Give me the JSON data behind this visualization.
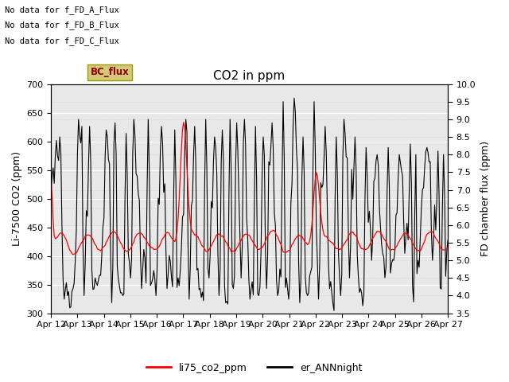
{
  "title": "CO2 in ppm",
  "ylabel_left": "Li-7500 CO2 (ppm)",
  "ylabel_right": "FD chamber flux (ppm)",
  "ylim_left": [
    300,
    700
  ],
  "ylim_right": [
    3.5,
    10.0
  ],
  "xlim": [
    0,
    360
  ],
  "xtick_labels": [
    "Apr 12",
    "Apr 13",
    "Apr 14",
    "Apr 15",
    "Apr 16",
    "Apr 17",
    "Apr 18",
    "Apr 19",
    "Apr 20",
    "Apr 21",
    "Apr 22",
    "Apr 23",
    "Apr 24",
    "Apr 25",
    "Apr 26",
    "Apr 27"
  ],
  "xtick_positions": [
    0,
    24,
    48,
    72,
    96,
    120,
    144,
    168,
    192,
    216,
    240,
    264,
    288,
    312,
    336,
    360
  ],
  "legend_labels": [
    "li75_co2_ppm",
    "er_ANNnight"
  ],
  "legend_colors": [
    "#ff0000",
    "#000000"
  ],
  "no_data_texts": [
    "No data for f_FD_A_Flux",
    "No data for f_FD_B_Flux",
    "No data for f_FD_C_Flux"
  ],
  "bc_flux_label": "BC_flux",
  "plot_bg_color": "#e8e8e8",
  "line_red_color": "#ff0000",
  "line_black_color": "#000000",
  "title_fontsize": 11,
  "axis_label_fontsize": 9,
  "tick_fontsize": 8,
  "yticks_left": [
    300,
    350,
    400,
    450,
    500,
    550,
    600,
    650,
    700
  ],
  "yticks_right": [
    3.5,
    4.0,
    4.5,
    5.0,
    5.5,
    6.0,
    6.5,
    7.0,
    7.5,
    8.0,
    8.5,
    9.0,
    9.5,
    10.0
  ]
}
